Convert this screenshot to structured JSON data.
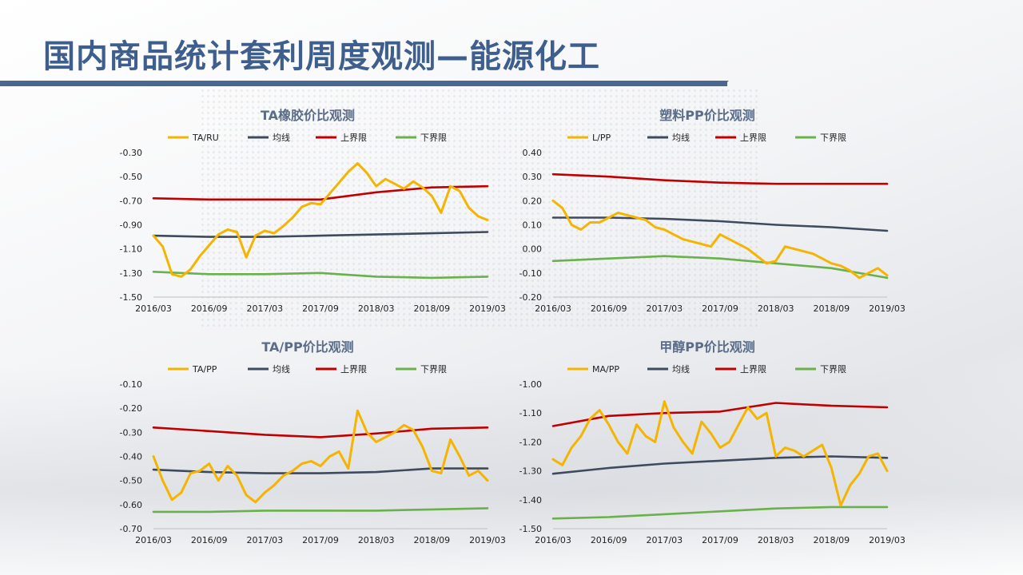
{
  "page": {
    "title": "国内商品统计套利周度观测—能源化工"
  },
  "colors": {
    "price": "#f5b400",
    "mean": "#3e4a5e",
    "upper": "#c00000",
    "lower": "#6ab04c"
  },
  "chart_data": [
    {
      "type": "line",
      "title": "TA橡胶价比观测",
      "legend": [
        "TA/RU",
        "均线",
        "上界限",
        "下界限"
      ],
      "xticks": [
        "2016/03",
        "2016/09",
        "2017/03",
        "2017/09",
        "2018/03",
        "2018/09",
        "2019/03"
      ],
      "yticks": [
        "-0.30",
        "-0.50",
        "-0.70",
        "-0.90",
        "-1.10",
        "-1.30",
        "-1.50"
      ],
      "ylim": [
        -1.5,
        -0.3
      ],
      "x_range": [
        0,
        36
      ],
      "series": [
        {
          "name": "TA/RU",
          "x": [
            0,
            1,
            2,
            3,
            4,
            5,
            6,
            7,
            8,
            9,
            10,
            11,
            12,
            13,
            14,
            15,
            16,
            17,
            18,
            19,
            20,
            21,
            22,
            23,
            24,
            25,
            26,
            27,
            28,
            29,
            30,
            31,
            32,
            33,
            34,
            35,
            36
          ],
          "y": [
            -0.99,
            -1.08,
            -1.31,
            -1.33,
            -1.27,
            -1.16,
            -1.07,
            -0.98,
            -0.94,
            -0.96,
            -1.17,
            -0.99,
            -0.95,
            -0.97,
            -0.91,
            -0.84,
            -0.75,
            -0.72,
            -0.73,
            -0.64,
            -0.55,
            -0.46,
            -0.39,
            -0.47,
            -0.58,
            -0.52,
            -0.56,
            -0.6,
            -0.54,
            -0.59,
            -0.66,
            -0.8,
            -0.58,
            -0.62,
            -0.76,
            -0.83,
            -0.86
          ]
        },
        {
          "name": "均线",
          "x": [
            0,
            6,
            12,
            18,
            24,
            30,
            36
          ],
          "y": [
            -0.99,
            -1.0,
            -1.0,
            -0.99,
            -0.98,
            -0.97,
            -0.96
          ]
        },
        {
          "name": "上界限",
          "x": [
            0,
            6,
            12,
            18,
            24,
            30,
            36
          ],
          "y": [
            -0.68,
            -0.69,
            -0.69,
            -0.69,
            -0.63,
            -0.59,
            -0.58
          ]
        },
        {
          "name": "下界限",
          "x": [
            0,
            6,
            12,
            18,
            24,
            30,
            36
          ],
          "y": [
            -1.29,
            -1.31,
            -1.31,
            -1.3,
            -1.33,
            -1.34,
            -1.33
          ]
        }
      ]
    },
    {
      "type": "line",
      "title": "塑料PP价比观测",
      "legend": [
        "L/PP",
        "均线",
        "上界限",
        "下界限"
      ],
      "xticks": [
        "2016/03",
        "2016/09",
        "2017/03",
        "2017/09",
        "2018/03",
        "2018/09",
        "2019/03"
      ],
      "yticks": [
        "0.40",
        "0.30",
        "0.20",
        "0.10",
        "0.00",
        "-0.10",
        "-0.20"
      ],
      "ylim": [
        -0.2,
        0.4
      ],
      "x_range": [
        0,
        36
      ],
      "series": [
        {
          "name": "L/PP",
          "x": [
            0,
            1,
            2,
            3,
            4,
            5,
            6,
            7,
            8,
            9,
            10,
            11,
            12,
            13,
            14,
            15,
            16,
            17,
            18,
            19,
            20,
            21,
            22,
            23,
            24,
            25,
            26,
            27,
            28,
            29,
            30,
            31,
            32,
            33,
            34,
            35,
            36
          ],
          "y": [
            0.2,
            0.17,
            0.1,
            0.08,
            0.11,
            0.11,
            0.13,
            0.15,
            0.14,
            0.13,
            0.12,
            0.09,
            0.08,
            0.06,
            0.04,
            0.03,
            0.02,
            0.01,
            0.06,
            0.04,
            0.02,
            0.0,
            -0.03,
            -0.06,
            -0.05,
            0.01,
            0.0,
            -0.01,
            -0.02,
            -0.04,
            -0.06,
            -0.07,
            -0.09,
            -0.12,
            -0.1,
            -0.08,
            -0.11
          ]
        },
        {
          "name": "均线",
          "x": [
            0,
            6,
            12,
            18,
            24,
            30,
            36
          ],
          "y": [
            0.13,
            0.13,
            0.125,
            0.115,
            0.1,
            0.09,
            0.075
          ]
        },
        {
          "name": "上界限",
          "x": [
            0,
            6,
            12,
            18,
            24,
            30,
            36
          ],
          "y": [
            0.31,
            0.3,
            0.285,
            0.275,
            0.27,
            0.27,
            0.27
          ]
        },
        {
          "name": "下界限",
          "x": [
            0,
            6,
            12,
            18,
            24,
            30,
            36
          ],
          "y": [
            -0.05,
            -0.04,
            -0.03,
            -0.04,
            -0.06,
            -0.08,
            -0.12
          ]
        }
      ]
    },
    {
      "type": "line",
      "title": "TA/PP价比观测",
      "legend": [
        "TA/PP",
        "均线",
        "上界限",
        "下界限"
      ],
      "xticks": [
        "2016/03",
        "2016/09",
        "2017/03",
        "2017/09",
        "2018/03",
        "2018/09",
        "2019/03"
      ],
      "yticks": [
        "-0.10",
        "-0.20",
        "-0.30",
        "-0.40",
        "-0.50",
        "-0.60",
        "-0.70"
      ],
      "ylim": [
        -0.7,
        -0.1
      ],
      "x_range": [
        0,
        36
      ],
      "series": [
        {
          "name": "TA/PP",
          "x": [
            0,
            1,
            2,
            3,
            4,
            5,
            6,
            7,
            8,
            9,
            10,
            11,
            12,
            13,
            14,
            15,
            16,
            17,
            18,
            19,
            20,
            21,
            22,
            23,
            24,
            25,
            26,
            27,
            28,
            29,
            30,
            31,
            32,
            33,
            34,
            35,
            36
          ],
          "y": [
            -0.4,
            -0.5,
            -0.58,
            -0.55,
            -0.47,
            -0.46,
            -0.43,
            -0.5,
            -0.44,
            -0.48,
            -0.56,
            -0.59,
            -0.55,
            -0.52,
            -0.48,
            -0.46,
            -0.43,
            -0.42,
            -0.44,
            -0.4,
            -0.38,
            -0.45,
            -0.21,
            -0.3,
            -0.34,
            -0.32,
            -0.3,
            -0.27,
            -0.29,
            -0.36,
            -0.46,
            -0.47,
            -0.33,
            -0.4,
            -0.48,
            -0.46,
            -0.5
          ]
        },
        {
          "name": "均线",
          "x": [
            0,
            6,
            12,
            18,
            24,
            30,
            36
          ],
          "y": [
            -0.455,
            -0.465,
            -0.47,
            -0.47,
            -0.465,
            -0.45,
            -0.45
          ]
        },
        {
          "name": "上界限",
          "x": [
            0,
            6,
            12,
            18,
            24,
            30,
            36
          ],
          "y": [
            -0.28,
            -0.295,
            -0.31,
            -0.32,
            -0.305,
            -0.285,
            -0.28
          ]
        },
        {
          "name": "下界限",
          "x": [
            0,
            6,
            12,
            18,
            24,
            30,
            36
          ],
          "y": [
            -0.63,
            -0.63,
            -0.625,
            -0.625,
            -0.625,
            -0.62,
            -0.615
          ]
        }
      ]
    },
    {
      "type": "line",
      "title": "甲醇PP价比观测",
      "legend": [
        "MA/PP",
        "均线",
        "上界限",
        "下界限"
      ],
      "xticks": [
        "2016/03",
        "2016/09",
        "2017/03",
        "2017/09",
        "2018/03",
        "2018/09",
        "2019/03"
      ],
      "yticks": [
        "-1.00",
        "-1.10",
        "-1.20",
        "-1.30",
        "-1.40",
        "-1.50"
      ],
      "ylim": [
        -1.5,
        -1.0
      ],
      "x_range": [
        0,
        36
      ],
      "series": [
        {
          "name": "MA/PP",
          "x": [
            0,
            1,
            2,
            3,
            4,
            5,
            6,
            7,
            8,
            9,
            10,
            11,
            12,
            13,
            14,
            15,
            16,
            17,
            18,
            19,
            20,
            21,
            22,
            23,
            24,
            25,
            26,
            27,
            28,
            29,
            30,
            31,
            32,
            33,
            34,
            35,
            36
          ],
          "y": [
            -1.26,
            -1.28,
            -1.22,
            -1.18,
            -1.12,
            -1.09,
            -1.14,
            -1.2,
            -1.24,
            -1.14,
            -1.18,
            -1.2,
            -1.06,
            -1.15,
            -1.2,
            -1.24,
            -1.13,
            -1.17,
            -1.22,
            -1.2,
            -1.14,
            -1.08,
            -1.12,
            -1.1,
            -1.25,
            -1.22,
            -1.23,
            -1.25,
            -1.23,
            -1.21,
            -1.29,
            -1.42,
            -1.35,
            -1.31,
            -1.25,
            -1.24,
            -1.3
          ]
        },
        {
          "name": "均线",
          "x": [
            0,
            6,
            12,
            18,
            24,
            30,
            36
          ],
          "y": [
            -1.31,
            -1.29,
            -1.275,
            -1.265,
            -1.255,
            -1.25,
            -1.255
          ]
        },
        {
          "name": "上界限",
          "x": [
            0,
            6,
            12,
            18,
            24,
            30,
            36
          ],
          "y": [
            -1.145,
            -1.11,
            -1.1,
            -1.095,
            -1.065,
            -1.075,
            -1.08
          ]
        },
        {
          "name": "下界限",
          "x": [
            0,
            6,
            12,
            18,
            24,
            30,
            36
          ],
          "y": [
            -1.465,
            -1.46,
            -1.45,
            -1.44,
            -1.43,
            -1.425,
            -1.425
          ]
        }
      ]
    }
  ]
}
